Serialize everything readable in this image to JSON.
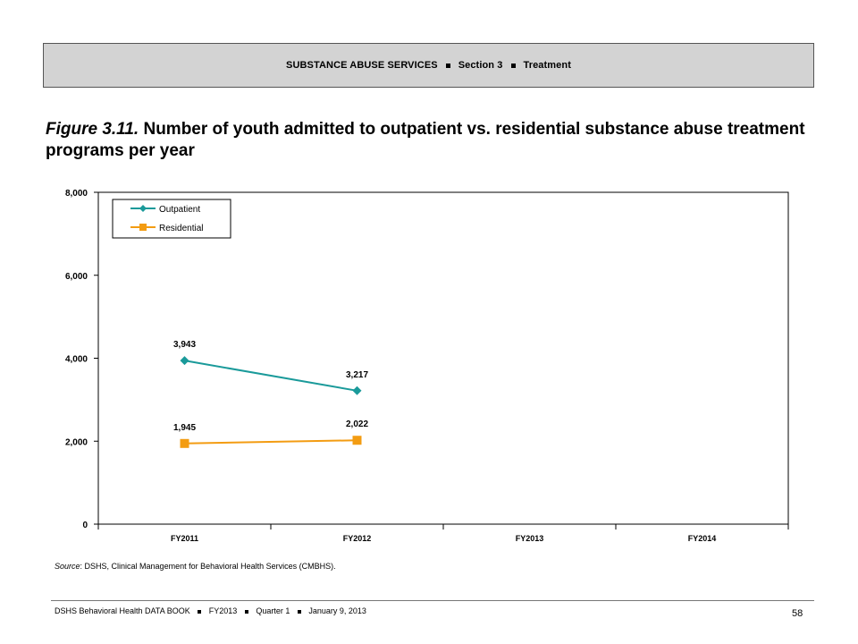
{
  "header": {
    "part1": "SUBSTANCE ABUSE SERVICES",
    "part2": "Section 3",
    "part3": "Treatment"
  },
  "figure": {
    "label": "Figure 3.11.",
    "title": "Number of youth admitted to outpatient vs. residential substance abuse treatment programs per year"
  },
  "chart_data": {
    "type": "line",
    "categories": [
      "FY2011",
      "FY2012",
      "FY2013",
      "FY2014"
    ],
    "series": [
      {
        "name": "Outpatient",
        "values": [
          3943,
          3217,
          null,
          null
        ],
        "labels": [
          "3,943",
          "3,217"
        ],
        "color": "#1a9a9a",
        "marker": "diamond"
      },
      {
        "name": "Residential",
        "values": [
          1945,
          2022,
          null,
          null
        ],
        "labels": [
          "1,945",
          "2,022"
        ],
        "color": "#f39c12",
        "marker": "square"
      }
    ],
    "ylim": [
      0,
      8000
    ],
    "yticks": [
      0,
      2000,
      4000,
      6000,
      8000
    ],
    "ytick_labels": [
      "0",
      "2,000",
      "4,000",
      "6,000",
      "8,000"
    ],
    "xlabel": "",
    "ylabel": "",
    "legend": "top-left",
    "grid": false
  },
  "source": {
    "label": "Source",
    "text": ": DSHS, Clinical Management for Behavioral Health Services (CMBHS)."
  },
  "footer": {
    "part1": "DSHS Behavioral Health DATA BOOK",
    "part2": "FY2013",
    "part3": "Quarter 1",
    "part4": "January  9, 2013",
    "page": "58"
  }
}
